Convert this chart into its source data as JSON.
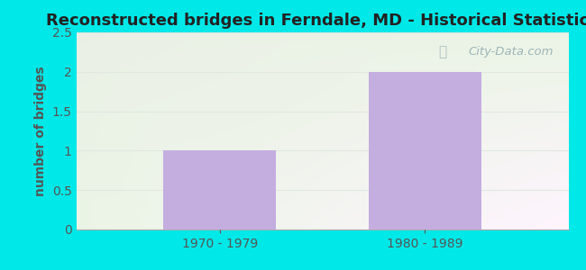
{
  "title": "Reconstructed bridges in Ferndale, MD - Historical Statistics",
  "categories": [
    "1970 - 1979",
    "1980 - 1989"
  ],
  "values": [
    1,
    2
  ],
  "bar_color": "#c4aee0",
  "ylabel": "number of bridges",
  "ylim": [
    0,
    2.5
  ],
  "yticks": [
    0,
    0.5,
    1,
    1.5,
    2,
    2.5
  ],
  "title_fontsize": 13,
  "axis_label_fontsize": 10,
  "tick_fontsize": 10,
  "outer_bg": "#00e8e8",
  "grid_color": "#e0e8e0",
  "watermark_text": "City-Data.com",
  "ylabel_color": "#555555",
  "tick_color": "#555555",
  "title_color": "#222222"
}
